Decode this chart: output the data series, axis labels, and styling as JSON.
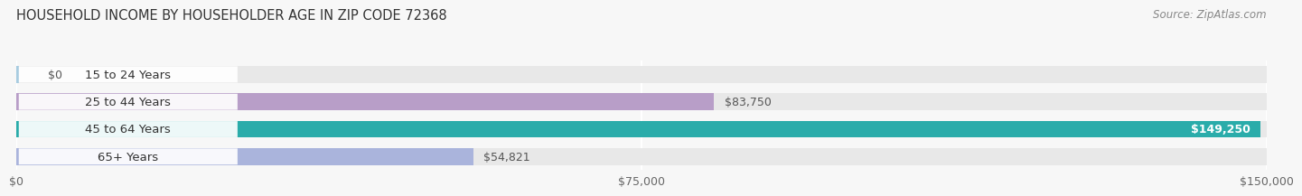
{
  "title": "HOUSEHOLD INCOME BY HOUSEHOLDER AGE IN ZIP CODE 72368",
  "source": "Source: ZipAtlas.com",
  "categories": [
    "15 to 24 Years",
    "25 to 44 Years",
    "45 to 64 Years",
    "65+ Years"
  ],
  "values": [
    0,
    83750,
    149250,
    54821
  ],
  "bar_colors": [
    "#a8cce0",
    "#b89ec8",
    "#2aacaa",
    "#aab4dc"
  ],
  "bar_bg_color": "#e8e8e8",
  "value_labels": [
    "$0",
    "$83,750",
    "$149,250",
    "$54,821"
  ],
  "label_inside": [
    false,
    false,
    true,
    false
  ],
  "x_ticks": [
    0,
    75000,
    150000
  ],
  "x_tick_labels": [
    "$0",
    "$75,000",
    "$150,000"
  ],
  "xlim": [
    0,
    150000
  ],
  "background_color": "#f7f7f7",
  "bar_height": 0.62,
  "title_fontsize": 10.5,
  "cat_fontsize": 9.5,
  "val_fontsize": 9,
  "tick_fontsize": 9,
  "source_fontsize": 8.5
}
